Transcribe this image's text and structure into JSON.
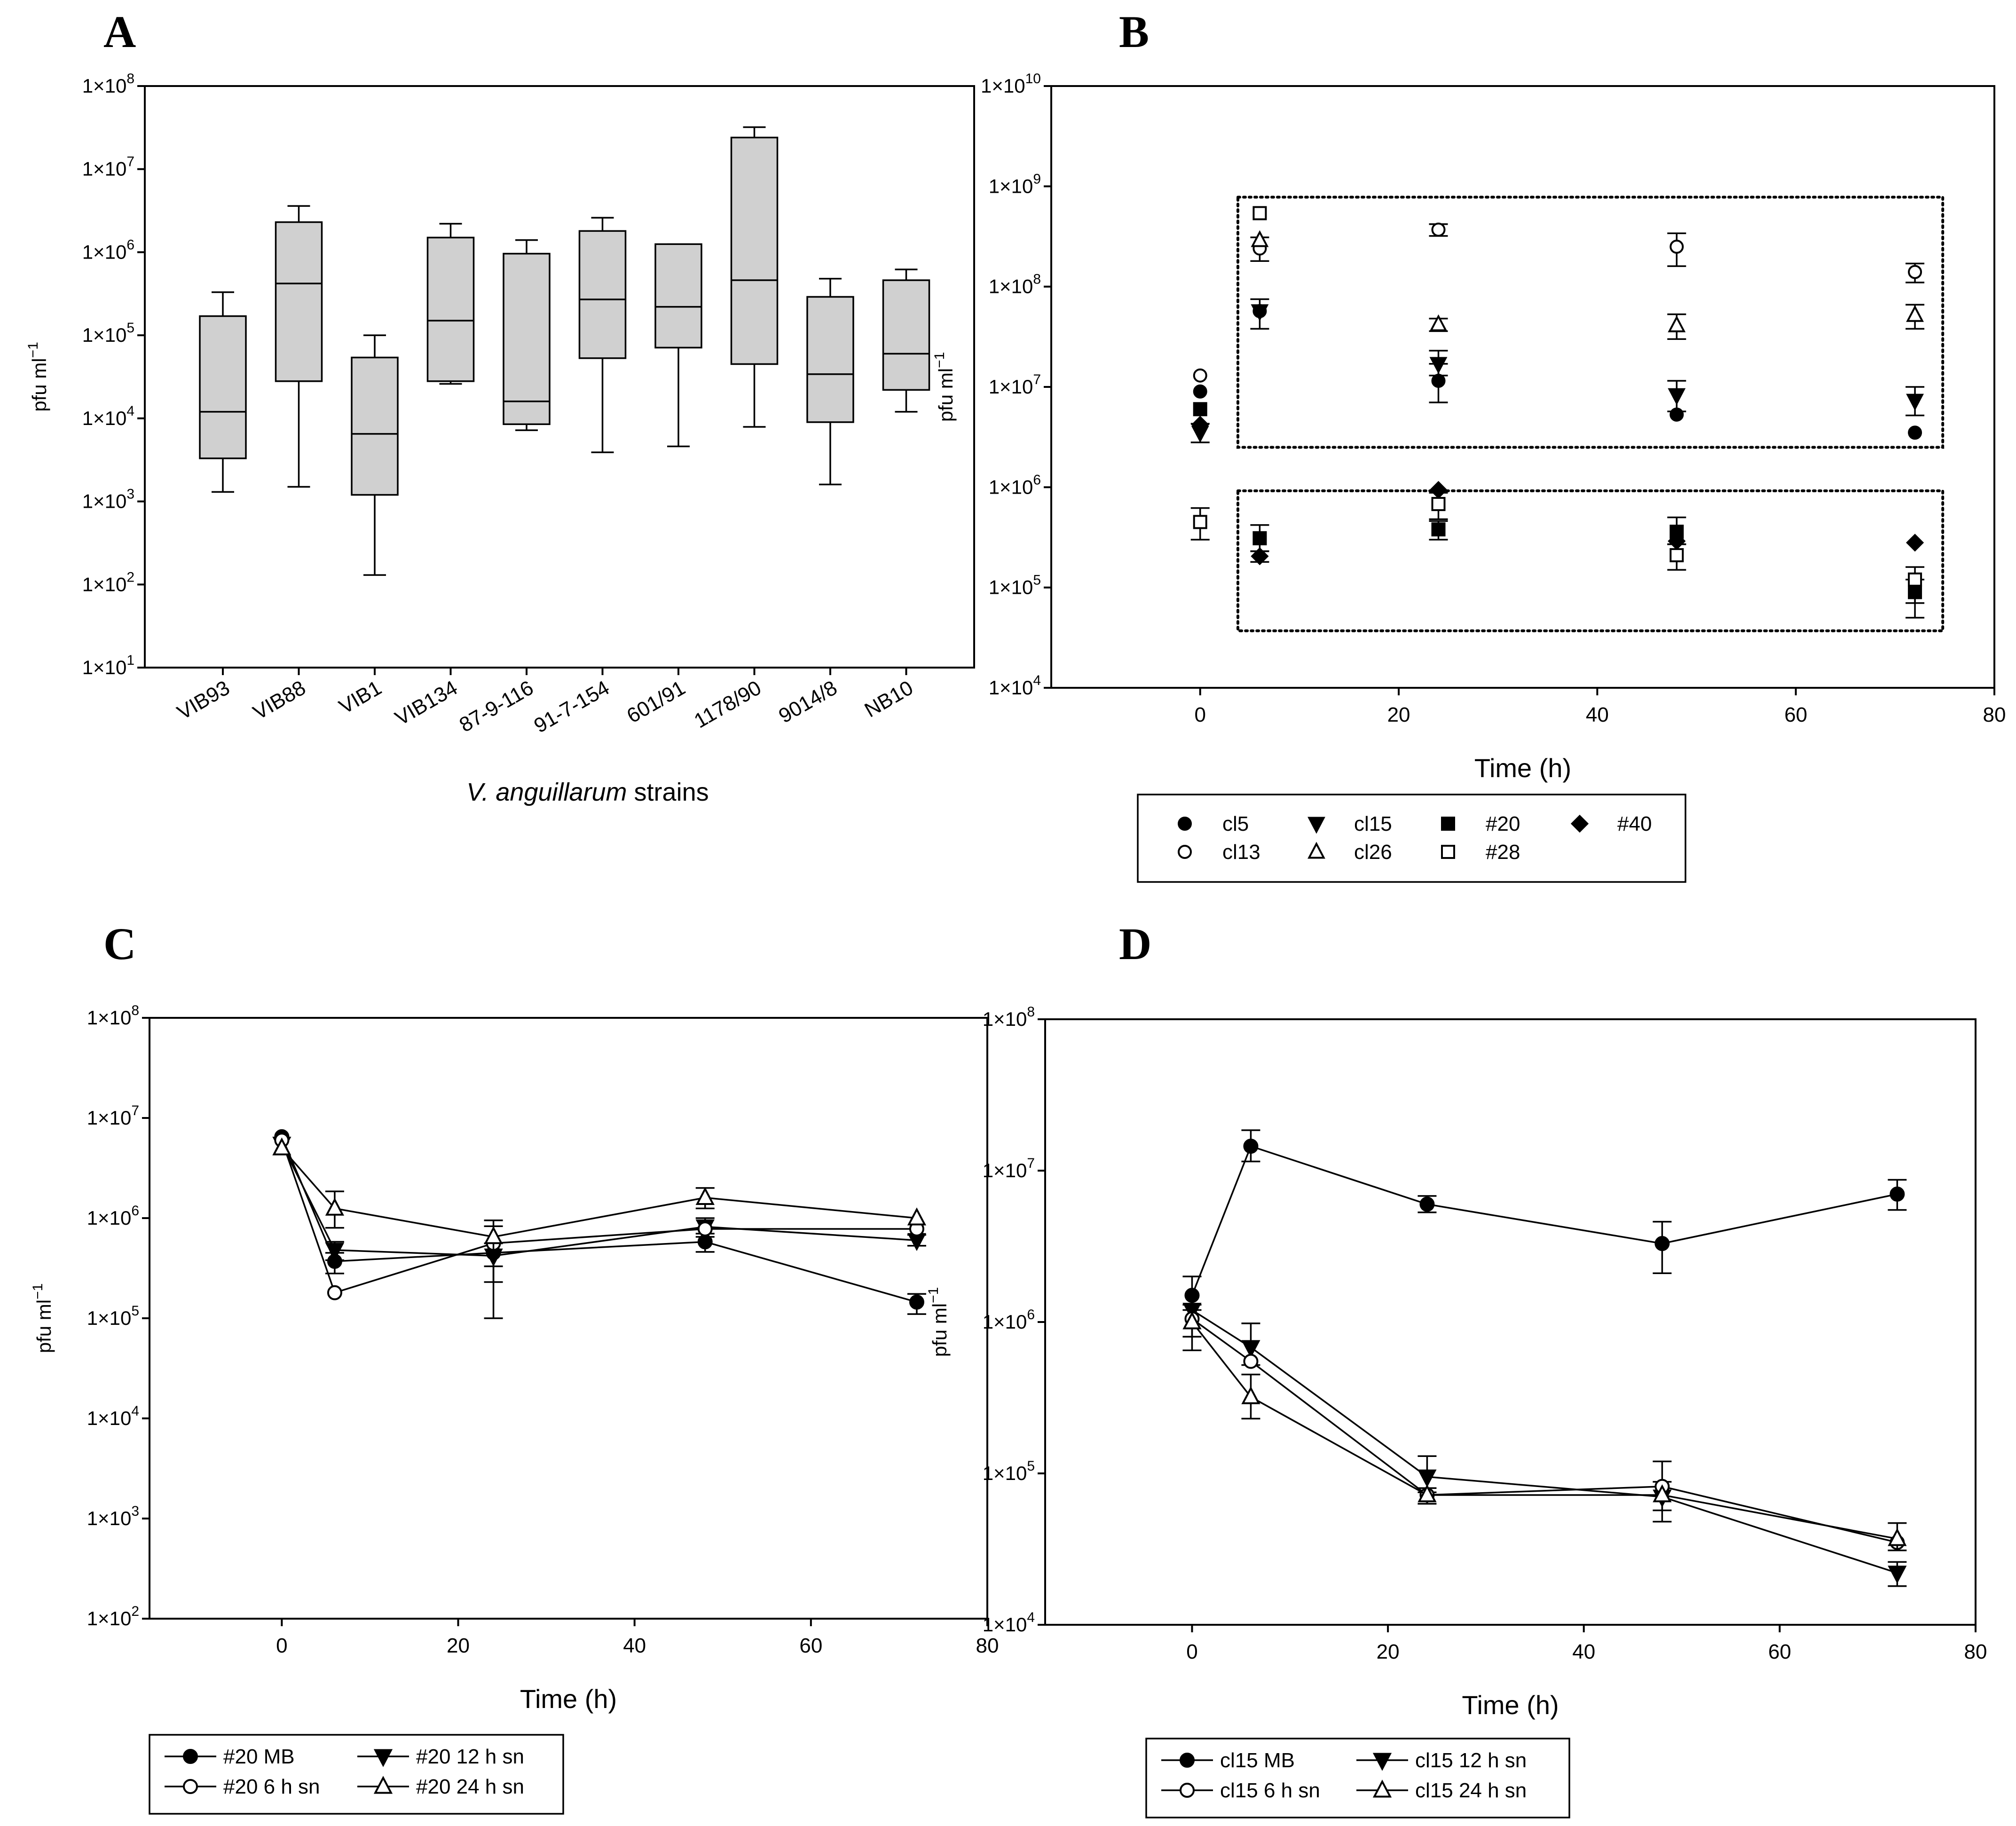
{
  "chart_data": [
    {
      "id": "A",
      "type": "box",
      "panel_label": "A",
      "xlabel_italic": "V. anguillarum",
      "xlabel_rest": " strains",
      "ylabel": "pfu ml",
      "ylabel_sup": "−1",
      "yscale": "log",
      "ylim": [
        10,
        100000000
      ],
      "yticks": [
        {
          "value": 10,
          "label": "1×10",
          "exp": "1"
        },
        {
          "value": 100,
          "label": "1×10",
          "exp": "2"
        },
        {
          "value": 1000,
          "label": "1×10",
          "exp": "3"
        },
        {
          "value": 10000,
          "label": "1×10",
          "exp": "4"
        },
        {
          "value": 100000,
          "label": "1×10",
          "exp": "5"
        },
        {
          "value": 1000000,
          "label": "1×10",
          "exp": "6"
        },
        {
          "value": 10000000,
          "label": "1×10",
          "exp": "7"
        },
        {
          "value": 100000000,
          "label": "1×10",
          "exp": "8"
        }
      ],
      "categories": [
        "VIB93",
        "VIB88",
        "VIB1",
        "VIB134",
        "87-9-116",
        "91-7-154",
        "601/91",
        "1178/90",
        "9014/8",
        "NB10"
      ],
      "boxes": [
        {
          "min": 1300,
          "q1": 3300,
          "median": 12000,
          "q3": 170000,
          "max": 330000
        },
        {
          "min": 1500,
          "q1": 28000,
          "median": 420000,
          "q3": 2300000,
          "max": 3600000
        },
        {
          "min": 130,
          "q1": 1200,
          "median": 6500,
          "q3": 54000,
          "max": 100000
        },
        {
          "min": 26000,
          "q1": 28000,
          "median": 150000,
          "q3": 1500000,
          "max": 2200000
        },
        {
          "min": 7200,
          "q1": 8500,
          "median": 16000,
          "q3": 960000,
          "max": 1400000
        },
        {
          "min": 3900,
          "q1": 53000,
          "median": 270000,
          "q3": 1800000,
          "max": 2600000
        },
        {
          "min": 4600,
          "q1": 71000,
          "median": 220000,
          "q3": 1250000,
          "max": 1250000
        },
        {
          "min": 7900,
          "q1": 45000,
          "median": 460000,
          "q3": 24000000,
          "max": 32000000
        },
        {
          "min": 1600,
          "q1": 9000,
          "median": 34000,
          "q3": 290000,
          "max": 480000
        },
        {
          "min": 12000,
          "q1": 22000,
          "median": 60000,
          "q3": 460000,
          "max": 620000
        }
      ]
    },
    {
      "id": "B",
      "type": "scatter",
      "panel_label": "B",
      "xlabel": "Time (h)",
      "ylabel": "pfu ml",
      "ylabel_sup": "−1",
      "yscale": "log",
      "xlim": [
        -15,
        80
      ],
      "ylim": [
        10000,
        10000000000
      ],
      "xticks": [
        0,
        20,
        40,
        60,
        80
      ],
      "yticks": [
        {
          "value": 10000,
          "label": "1×10",
          "exp": "4"
        },
        {
          "value": 100000,
          "label": "1×10",
          "exp": "5"
        },
        {
          "value": 1000000,
          "label": "1×10",
          "exp": "6"
        },
        {
          "value": 10000000,
          "label": "1×10",
          "exp": "7"
        },
        {
          "value": 100000000,
          "label": "1×10",
          "exp": "8"
        },
        {
          "value": 1000000000,
          "label": "1×10",
          "exp": "9"
        },
        {
          "value": 10000000000,
          "label": "1×10",
          "exp": "10"
        }
      ],
      "dotted_boxes": [
        {
          "x": [
            3.8,
            74.8
          ],
          "y": [
            2500000,
            780000000
          ]
        },
        {
          "x": [
            3.8,
            74.8
          ],
          "y": [
            37000,
            920000
          ]
        }
      ],
      "legend": [
        {
          "name": "cl5",
          "marker": "circle",
          "fill": "filled"
        },
        {
          "name": "cl15",
          "marker": "triangle-down",
          "fill": "filled"
        },
        {
          "name": "#20",
          "marker": "square",
          "fill": "filled"
        },
        {
          "name": "#40",
          "marker": "diamond",
          "fill": "filled"
        },
        {
          "name": "cl13",
          "marker": "circle",
          "fill": "open"
        },
        {
          "name": "cl26",
          "marker": "triangle-up",
          "fill": "open"
        },
        {
          "name": "#28",
          "marker": "square",
          "fill": "open"
        }
      ],
      "series": [
        {
          "name": "cl5",
          "marker": "circle",
          "fill": "filled",
          "x": [
            0,
            6,
            24,
            48,
            72
          ],
          "y": [
            9000000,
            57000000,
            11500000,
            5300000,
            3500000
          ],
          "err_low": [
            null,
            38000000,
            7000000,
            null,
            null
          ],
          "err_high": [
            null,
            75000000,
            17000000,
            null,
            null
          ]
        },
        {
          "name": "cl15",
          "marker": "triangle-down",
          "fill": "filled",
          "x": [
            0,
            6,
            24,
            48,
            72
          ],
          "y": [
            3500000,
            57000000,
            17000000,
            8300000,
            7300000
          ],
          "err_low": [
            2800000,
            null,
            13000000,
            5700000,
            5200000
          ],
          "err_high": [
            4300000,
            null,
            23000000,
            11500000,
            10000000
          ]
        },
        {
          "name": "#20",
          "marker": "square",
          "fill": "filled",
          "x": [
            0,
            6,
            24,
            48,
            72
          ],
          "y": [
            6000000,
            310000,
            380000,
            360000,
            90000
          ],
          "err_low": [
            null,
            230000,
            300000,
            270000,
            70000
          ],
          "err_high": [
            null,
            420000,
            460000,
            500000,
            120000
          ]
        },
        {
          "name": "#40",
          "marker": "diamond",
          "fill": "filled",
          "x": [
            0,
            6,
            24,
            48,
            72
          ],
          "y": [
            4200000,
            205000,
            940000,
            290000,
            280000
          ],
          "err_low": [
            null,
            180000,
            null,
            null,
            null
          ],
          "err_high": [
            null,
            230000,
            null,
            null,
            null
          ]
        },
        {
          "name": "cl13",
          "marker": "circle",
          "fill": "open",
          "x": [
            0,
            6,
            24,
            48,
            72
          ],
          "y": [
            13000000,
            240000000,
            370000000,
            250000000,
            140000000
          ],
          "err_low": [
            null,
            180000000,
            320000000,
            160000000,
            110000000
          ],
          "err_high": [
            null,
            310000000,
            420000000,
            340000000,
            170000000
          ]
        },
        {
          "name": "cl26",
          "marker": "triangle-up",
          "fill": "open",
          "x": [
            6,
            24,
            48,
            72
          ],
          "y": [
            290000000,
            42000000,
            41000000,
            52000000
          ],
          "err_low": [
            null,
            36000000,
            30000000,
            38000000
          ],
          "err_high": [
            null,
            48000000,
            53000000,
            66000000
          ]
        },
        {
          "name": "#28",
          "marker": "square",
          "fill": "open",
          "x": [
            0,
            6,
            24,
            48,
            72
          ],
          "y": [
            450000,
            540000000,
            680000,
            210000,
            120000
          ],
          "err_low": [
            300000,
            null,
            480000,
            150000,
            50000
          ],
          "err_high": [
            620000,
            null,
            880000,
            270000,
            160000
          ]
        }
      ]
    },
    {
      "id": "C",
      "type": "line",
      "panel_label": "C",
      "xlabel": "Time (h)",
      "ylabel": "pfu ml",
      "ylabel_sup": "−1",
      "yscale": "log",
      "xlim": [
        -15,
        80
      ],
      "ylim": [
        100,
        100000000
      ],
      "xticks": [
        0,
        20,
        40,
        60,
        80
      ],
      "yticks": [
        {
          "value": 100,
          "label": "1×10",
          "exp": "2"
        },
        {
          "value": 1000,
          "label": "1×10",
          "exp": "3"
        },
        {
          "value": 10000,
          "label": "1×10",
          "exp": "4"
        },
        {
          "value": 100000,
          "label": "1×10",
          "exp": "5"
        },
        {
          "value": 1000000,
          "label": "1×10",
          "exp": "6"
        },
        {
          "value": 10000000,
          "label": "1×10",
          "exp": "7"
        },
        {
          "value": 100000000,
          "label": "1×10",
          "exp": "8"
        }
      ],
      "legend": [
        {
          "name": "#20 MB",
          "marker": "circle",
          "fill": "filled"
        },
        {
          "name": "#20 12 h sn",
          "marker": "triangle-down",
          "fill": "filled"
        },
        {
          "name": "#20 6 h sn",
          "marker": "circle",
          "fill": "open"
        },
        {
          "name": "#20 24 h sn",
          "marker": "triangle-up",
          "fill": "open"
        }
      ],
      "series": [
        {
          "name": "#20 MB",
          "marker": "circle",
          "fill": "filled",
          "x": [
            0,
            6,
            24,
            48,
            72
          ],
          "y": [
            6500000,
            370000,
            450000,
            580000,
            145000
          ],
          "err_low": [
            null,
            280000,
            330000,
            460000,
            110000
          ],
          "err_high": [
            null,
            450000,
            560000,
            700000,
            175000
          ]
        },
        {
          "name": "#20 12 h sn",
          "marker": "triangle-down",
          "fill": "filled",
          "x": [
            0,
            6,
            24,
            48,
            72
          ],
          "y": [
            5500000,
            480000,
            420000,
            820000,
            600000
          ],
          "err_low": [
            null,
            380000,
            null,
            650000,
            530000
          ],
          "err_high": [
            null,
            580000,
            null,
            1000000,
            680000
          ]
        },
        {
          "name": "#20 6 h sn",
          "marker": "circle",
          "fill": "open",
          "x": [
            0,
            6,
            24,
            48,
            72
          ],
          "y": [
            6000000,
            180000,
            560000,
            780000,
            780000
          ],
          "err_low": [
            null,
            null,
            100000,
            null,
            null
          ],
          "err_high": [
            null,
            null,
            830000,
            null,
            null
          ]
        },
        {
          "name": "#20 24 h sn",
          "marker": "triangle-up",
          "fill": "open",
          "x": [
            0,
            6,
            24,
            48,
            72
          ],
          "y": [
            5000000,
            1250000,
            650000,
            1600000,
            1000000
          ],
          "err_low": [
            null,
            800000,
            230000,
            1250000,
            null
          ],
          "err_high": [
            null,
            1850000,
            950000,
            2000000,
            null
          ]
        }
      ]
    },
    {
      "id": "D",
      "type": "line",
      "panel_label": "D",
      "xlabel": "Time (h)",
      "ylabel": "pfu ml",
      "ylabel_sup": "−1",
      "yscale": "log",
      "xlim": [
        -15,
        80
      ],
      "ylim": [
        10000,
        100000000
      ],
      "xticks": [
        0,
        20,
        40,
        60,
        80
      ],
      "yticks": [
        {
          "value": 10000,
          "label": "1×10",
          "exp": "4"
        },
        {
          "value": 100000,
          "label": "1×10",
          "exp": "5"
        },
        {
          "value": 1000000,
          "label": "1×10",
          "exp": "6"
        },
        {
          "value": 10000000,
          "label": "1×10",
          "exp": "7"
        },
        {
          "value": 100000000,
          "label": "1×10",
          "exp": "8"
        }
      ],
      "legend": [
        {
          "name": "cl15 MB",
          "marker": "circle",
          "fill": "filled"
        },
        {
          "name": "cl15 12 h sn",
          "marker": "triangle-down",
          "fill": "filled"
        },
        {
          "name": "cl15 6 h sn",
          "marker": "circle",
          "fill": "open"
        },
        {
          "name": "cl15 24 h sn",
          "marker": "triangle-up",
          "fill": "open"
        }
      ],
      "series": [
        {
          "name": "cl15 MB",
          "marker": "circle",
          "fill": "filled",
          "x": [
            0,
            6,
            24,
            48,
            72
          ],
          "y": [
            1500000,
            14500000,
            6000000,
            3300000,
            7000000
          ],
          "err_low": [
            1200000,
            11500000,
            5300000,
            2100000,
            5500000
          ],
          "err_high": [
            2000000,
            18500000,
            6800000,
            4600000,
            8700000
          ]
        },
        {
          "name": "cl15 12 h sn",
          "marker": "triangle-down",
          "fill": "filled",
          "x": [
            0,
            6,
            24,
            48,
            72
          ],
          "y": [
            1200000,
            680000,
            95000,
            70000,
            22000
          ],
          "err_low": [
            null,
            520000,
            75000,
            57000,
            18000
          ],
          "err_high": [
            null,
            980000,
            130000,
            88000,
            26000
          ]
        },
        {
          "name": "cl15 6 h sn",
          "marker": "circle",
          "fill": "open",
          "x": [
            0,
            6,
            24,
            48,
            72
          ],
          "y": [
            1050000,
            550000,
            72000,
            82000,
            35000
          ],
          "err_low": [
            800000,
            null,
            null,
            48000,
            null
          ],
          "err_high": [
            1300000,
            null,
            null,
            120000,
            null
          ]
        },
        {
          "name": "cl15 24 h sn",
          "marker": "triangle-up",
          "fill": "open",
          "x": [
            0,
            6,
            24,
            48,
            72
          ],
          "y": [
            1000000,
            320000,
            72000,
            72000,
            37000
          ],
          "err_low": [
            650000,
            230000,
            63000,
            null,
            31000
          ],
          "err_high": [
            1300000,
            450000,
            80000,
            null,
            47000
          ]
        }
      ]
    }
  ]
}
